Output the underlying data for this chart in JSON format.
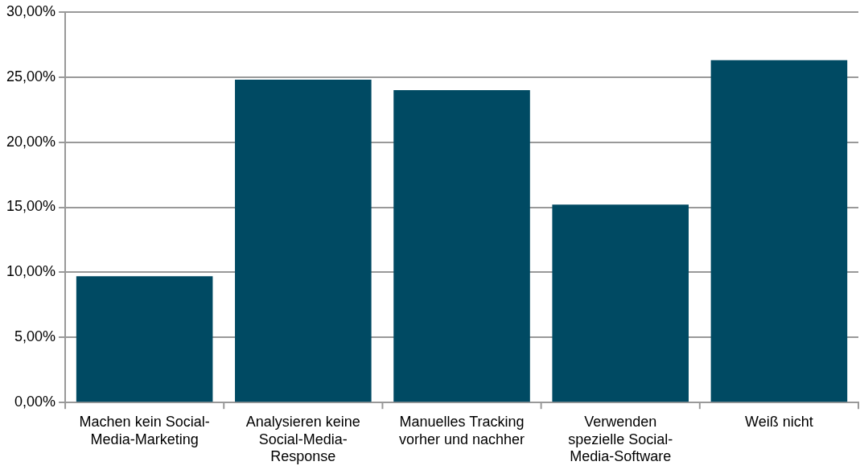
{
  "chart_data": {
    "type": "bar",
    "categories": [
      "Machen kein Social-Media-Marketing",
      "Analysieren keine Social-Media-Response",
      "Manuelles Tracking vorher und nachher",
      "Verwenden spezielle Social-Media-Software",
      "Weiß nicht"
    ],
    "values": [
      9.7,
      24.8,
      24.0,
      15.2,
      26.3
    ],
    "color": "#004a63",
    "ylim": [
      0,
      30
    ],
    "yticks": [
      {
        "value": 0,
        "label": "0,00%"
      },
      {
        "value": 5,
        "label": "5,00%"
      },
      {
        "value": 10,
        "label": "10,00%"
      },
      {
        "value": 15,
        "label": "15,00%"
      },
      {
        "value": 20,
        "label": "20,00%"
      },
      {
        "value": 25,
        "label": "25,00%"
      },
      {
        "value": 30,
        "label": "30,00%"
      }
    ],
    "grid": "y",
    "legend": false
  }
}
